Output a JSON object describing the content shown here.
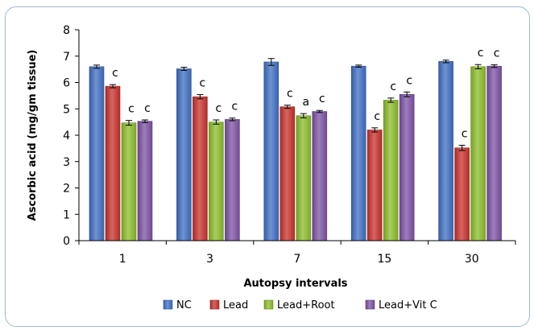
{
  "chart_data": {
    "type": "bar",
    "xlabel": "Autopsy intervals",
    "ylabel": "Ascorbic acid (mg/gm tissue)",
    "ylim": [
      0,
      8
    ],
    "yticks": [
      "0",
      "1",
      "2",
      "3",
      "4",
      "5",
      "6",
      "7",
      "8"
    ],
    "categories": [
      "1",
      "3",
      "7",
      "15",
      "30"
    ],
    "series": [
      {
        "name": "NC",
        "color": "#3f6fc4",
        "values": [
          6.6,
          6.52,
          6.78,
          6.62,
          6.8
        ],
        "errors": [
          0.06,
          0.06,
          0.13,
          0.04,
          0.05
        ],
        "sig": [
          "",
          "",
          "",
          "",
          ""
        ]
      },
      {
        "name": "Lead",
        "color": "#c8312c",
        "values": [
          5.86,
          5.46,
          5.08,
          4.2,
          3.52
        ],
        "errors": [
          0.06,
          0.08,
          0.06,
          0.08,
          0.1
        ],
        "sig": [
          "c",
          "c",
          "c",
          "c",
          "c"
        ]
      },
      {
        "name": "Lead+Root",
        "color": "#8bbd2a",
        "values": [
          4.47,
          4.5,
          4.74,
          5.33,
          6.6
        ],
        "errors": [
          0.09,
          0.08,
          0.08,
          0.08,
          0.08
        ],
        "sig": [
          "c",
          "c",
          "a",
          "c",
          "c"
        ]
      },
      {
        "name": "Lead+Vit C",
        "color": "#7d52a6",
        "values": [
          4.53,
          4.6,
          4.9,
          5.55,
          6.62
        ],
        "errors": [
          0.05,
          0.05,
          0.04,
          0.09,
          0.05
        ],
        "sig": [
          "c",
          "c",
          "c",
          "c",
          "c"
        ]
      }
    ],
    "legend_position": "bottom",
    "grid": false
  }
}
